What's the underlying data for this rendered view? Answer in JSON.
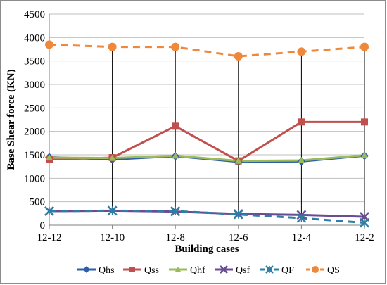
{
  "chart_data": {
    "type": "line",
    "xlabel": "Building cases",
    "ylabel": "Base Shear force (KN)",
    "categories": [
      "12-12",
      "12-10",
      "12-8",
      "12-6",
      "12-4",
      "12-2"
    ],
    "ylim": [
      0,
      4500
    ],
    "yticks": [
      0,
      500,
      1000,
      1500,
      2000,
      2500,
      3000,
      3500,
      4000,
      4500
    ],
    "grid": "horizontal major gridlines",
    "drop_lines": true,
    "legend_position": "bottom",
    "series": [
      {
        "name": "Qhs",
        "values": [
          1450,
          1400,
          1470,
          1350,
          1360,
          1480
        ],
        "color": "#2e5fa6",
        "marker": "diamond",
        "dash": "solid"
      },
      {
        "name": "Qss",
        "values": [
          1400,
          1440,
          2110,
          1370,
          2200,
          2200
        ],
        "color": "#c0504d",
        "marker": "square",
        "dash": "solid"
      },
      {
        "name": "Qhf",
        "values": [
          1440,
          1430,
          1480,
          1370,
          1380,
          1490
        ],
        "color": "#9bbb59",
        "marker": "triangle",
        "dash": "solid"
      },
      {
        "name": "Qsf",
        "values": [
          300,
          310,
          290,
          240,
          220,
          180
        ],
        "color": "#6a4c93",
        "marker": "x",
        "dash": "solid"
      },
      {
        "name": "QF",
        "values": [
          300,
          310,
          300,
          230,
          150,
          50
        ],
        "color": "#2d7ea6",
        "marker": "star",
        "dash": "dashed"
      },
      {
        "name": "QS",
        "values": [
          3850,
          3800,
          3800,
          3600,
          3700,
          3800
        ],
        "color": "#f0883c",
        "marker": "circle",
        "dash": "dashed"
      }
    ]
  }
}
